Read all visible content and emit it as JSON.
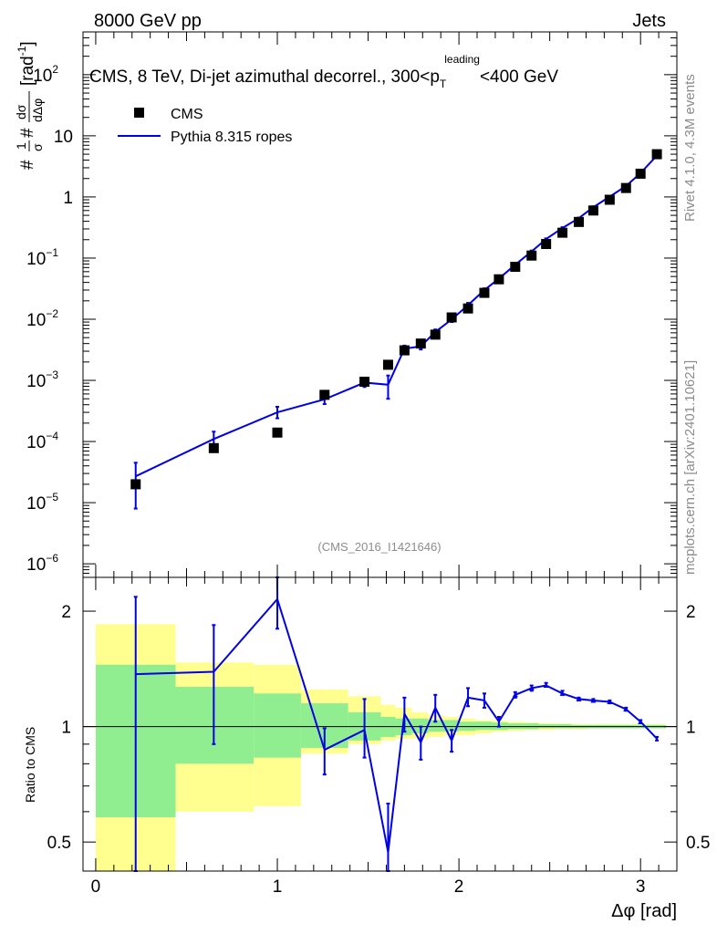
{
  "header": {
    "left": "8000 GeV pp",
    "right": "Jets"
  },
  "side_text": {
    "rivet": "Rivet 4.1.0,  4.3M events",
    "mcplots": "mcplots.cern.ch [arXiv:2401.10621]"
  },
  "colors": {
    "mc_line": "#0000e6",
    "band_inner": "#90ee90",
    "band_outer": "#ffff90",
    "data_marker": "#000000"
  },
  "chart_data": [
    {
      "type": "scatter",
      "panel": "main",
      "title_prefix": "CMS, 8 TeV, Di-jet azimuthal decorrel., 300<p",
      "title_sub": "T",
      "title_sup": "leading",
      "title_suffix": "<400 GeV",
      "ylabel": "#frac{1}{σ}#frac{dσ}{dΔφ} [rad⁻¹]",
      "ylabel_parts": {
        "one": "1",
        "sigma": "σ",
        "dsigma": "dσ",
        "dphi": "dΔφ",
        "hash": "#",
        "unit": "[rad",
        "unit_sup": "-1",
        "unit_end": "]"
      },
      "yscale": "log",
      "ylim": [
        6e-07,
        500
      ],
      "xlim": [
        -0.07,
        3.2
      ],
      "yticks": [
        {
          "v": 1e-06,
          "base": "10",
          "exp": "−6"
        },
        {
          "v": 1e-05,
          "base": "10",
          "exp": "−5"
        },
        {
          "v": 0.0001,
          "base": "10",
          "exp": "−4"
        },
        {
          "v": 0.001,
          "base": "10",
          "exp": "−3"
        },
        {
          "v": 0.01,
          "base": "10",
          "exp": "−2"
        },
        {
          "v": 0.1,
          "base": "10",
          "exp": "−1"
        },
        {
          "v": 1,
          "base": "1",
          "exp": ""
        },
        {
          "v": 10,
          "base": "10",
          "exp": ""
        },
        {
          "v": 100,
          "base": "10",
          "exp": "2"
        }
      ],
      "watermark": "(CMS_2016_I1421646)",
      "legend": {
        "position": "top-left",
        "entries": [
          "CMS",
          "Pythia 8.315 ropes"
        ]
      },
      "series": [
        {
          "name": "CMS",
          "style": "marker",
          "x": [
            0.22,
            0.65,
            1.0,
            1.26,
            1.48,
            1.61,
            1.7,
            1.79,
            1.87,
            1.96,
            2.05,
            2.14,
            2.22,
            2.31,
            2.4,
            2.48,
            2.57,
            2.66,
            2.74,
            2.83,
            2.92,
            3.0,
            3.09
          ],
          "y": [
            2e-05,
            7.8e-05,
            0.00014,
            0.00058,
            0.00095,
            0.0018,
            0.0031,
            0.004,
            0.0056,
            0.0107,
            0.015,
            0.027,
            0.045,
            0.072,
            0.11,
            0.17,
            0.26,
            0.39,
            0.6,
            0.9,
            1.4,
            2.4,
            5.0
          ]
        },
        {
          "name": "Pythia 8.315 ropes",
          "style": "line",
          "x": [
            0.22,
            0.65,
            1.0,
            1.26,
            1.48,
            1.61,
            1.7,
            1.79,
            1.87,
            1.96,
            2.05,
            2.14,
            2.22,
            2.31,
            2.4,
            2.48,
            2.57,
            2.66,
            2.74,
            2.83,
            2.92,
            3.0,
            3.09
          ],
          "y": [
            2.7e-05,
            0.00011,
            0.0003,
            0.00049,
            0.00092,
            0.00085,
            0.0033,
            0.0036,
            0.0062,
            0.0099,
            0.017,
            0.03,
            0.046,
            0.078,
            0.128,
            0.205,
            0.31,
            0.45,
            0.68,
            1.01,
            1.51,
            2.45,
            4.75
          ],
          "err_lo": [
            8e-06,
            8e-05,
            0.00024,
            0.00041,
            0.00078,
            0.0005,
            0.0029,
            0.0032,
            0.0056,
            0.009,
            0.0155,
            0.028,
            0.043,
            0.074,
            0.123,
            0.2,
            0.3,
            0.44,
            0.66,
            0.99,
            1.48,
            2.4,
            4.7
          ],
          "err_hi": [
            4.5e-05,
            0.000145,
            0.00037,
            0.00058,
            0.00105,
            0.0012,
            0.0037,
            0.004,
            0.0068,
            0.0108,
            0.0185,
            0.032,
            0.049,
            0.082,
            0.133,
            0.21,
            0.32,
            0.46,
            0.7,
            1.03,
            1.54,
            2.5,
            4.8
          ]
        }
      ]
    },
    {
      "type": "line",
      "panel": "ratio",
      "ylabel": "Ratio to CMS",
      "xlabel": "Δφ [rad]",
      "yscale": "log",
      "ylim": [
        0.42,
        2.45
      ],
      "xlim": [
        -0.07,
        3.2
      ],
      "xticks": [
        {
          "v": 0,
          "label": "0"
        },
        {
          "v": 1,
          "label": "1"
        },
        {
          "v": 2,
          "label": "2"
        },
        {
          "v": 3,
          "label": "3"
        }
      ],
      "yticks": [
        {
          "v": 0.5,
          "label": "0.5"
        },
        {
          "v": 1,
          "label": "1"
        },
        {
          "v": 2,
          "label": "2"
        }
      ],
      "reference_line": 1,
      "bands": {
        "edges": [
          0,
          0.44,
          0.87,
          1.13,
          1.39,
          1.57,
          1.65,
          1.74,
          1.83,
          1.92,
          2.0,
          2.09,
          2.18,
          2.27,
          2.36,
          2.44,
          2.53,
          2.62,
          2.71,
          2.79,
          2.88,
          2.97,
          3.05,
          3.14
        ],
        "inner_lo": [
          0.58,
          0.8,
          0.83,
          0.88,
          0.92,
          0.94,
          0.95,
          0.96,
          0.97,
          0.97,
          0.975,
          0.98,
          0.98,
          0.985,
          0.985,
          0.99,
          0.99,
          0.99,
          0.99,
          0.99,
          0.99,
          0.99,
          0.99
        ],
        "inner_hi": [
          1.45,
          1.27,
          1.22,
          1.15,
          1.09,
          1.06,
          1.05,
          1.05,
          1.04,
          1.04,
          1.03,
          1.03,
          1.025,
          1.02,
          1.02,
          1.015,
          1.015,
          1.01,
          1.01,
          1.01,
          1.01,
          1.01,
          1.01
        ],
        "outer_lo": [
          0.35,
          0.6,
          0.62,
          0.85,
          0.9,
          0.92,
          0.93,
          0.93,
          0.94,
          0.95,
          0.95,
          0.96,
          0.97,
          0.975,
          0.98,
          0.98,
          0.985,
          0.985,
          0.99,
          0.99,
          0.99,
          0.99,
          0.99
        ],
        "outer_hi": [
          1.85,
          1.47,
          1.45,
          1.25,
          1.2,
          1.14,
          1.12,
          1.09,
          1.07,
          1.06,
          1.05,
          1.04,
          1.035,
          1.03,
          1.025,
          1.02,
          1.02,
          1.015,
          1.015,
          1.015,
          1.015,
          1.015,
          1.015
        ]
      },
      "series": [
        {
          "name": "Pythia 8.315 ropes / CMS",
          "x": [
            0.22,
            0.65,
            1.0,
            1.26,
            1.48,
            1.61,
            1.7,
            1.79,
            1.87,
            1.96,
            2.05,
            2.14,
            2.22,
            2.31,
            2.4,
            2.48,
            2.57,
            2.66,
            2.74,
            2.83,
            2.92,
            3.0,
            3.09
          ],
          "y": [
            1.37,
            1.39,
            2.15,
            0.87,
            0.98,
            0.47,
            1.08,
            0.91,
            1.12,
            0.92,
            1.19,
            1.17,
            1.03,
            1.21,
            1.26,
            1.28,
            1.22,
            1.18,
            1.17,
            1.16,
            1.11,
            1.03,
            0.93
          ],
          "err_lo": [
            0.3,
            0.9,
            1.8,
            0.75,
            0.83,
            0.3,
            0.97,
            0.82,
            1.03,
            0.86,
            1.13,
            1.12,
            1.0,
            1.19,
            1.24,
            1.27,
            1.21,
            1.17,
            1.16,
            1.15,
            1.1,
            1.02,
            0.92
          ],
          "err_hi": [
            2.18,
            1.84,
            2.45,
            0.99,
            1.18,
            0.63,
            1.19,
            1.0,
            1.21,
            0.98,
            1.26,
            1.22,
            1.06,
            1.23,
            1.28,
            1.3,
            1.24,
            1.19,
            1.18,
            1.17,
            1.12,
            1.04,
            0.94
          ]
        }
      ]
    }
  ]
}
